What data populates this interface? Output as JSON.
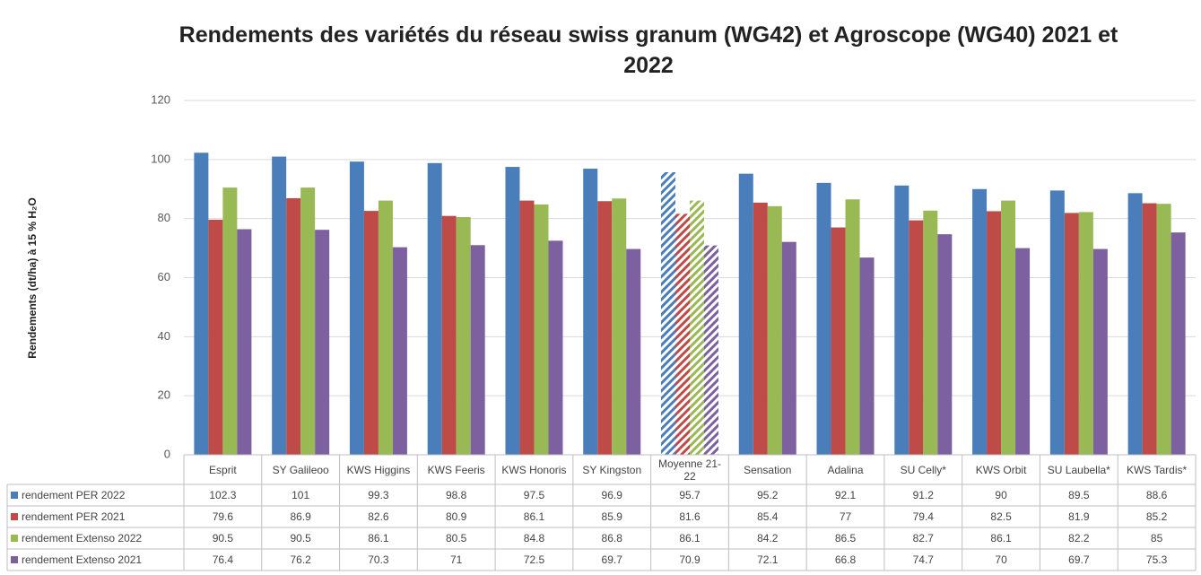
{
  "chart_data": {
    "type": "bar",
    "title": "Rendements des variétés du réseau swiss granum (WG42) et Agroscope (WG40) 2021 et 2022",
    "y_label": "Rendements (dt/ha) à 15 % H₂O",
    "categories": [
      "Esprit",
      "SY Galileoo",
      "KWS Higgins",
      "KWS Feeris",
      "KWS Honoris",
      "SY Kingston",
      "Moyenne 21-22",
      "Sensation",
      "Adalina",
      "SU Celly*",
      "KWS Orbit",
      "SU Laubella*",
      "KWS Tardis*"
    ],
    "series": [
      {
        "name": "rendement PER 2022",
        "color": "#4a7ebb",
        "values": [
          102.3,
          101,
          99.3,
          98.8,
          97.5,
          96.9,
          95.7,
          95.2,
          92.1,
          91.2,
          90,
          89.5,
          88.6
        ]
      },
      {
        "name": "rendement PER 2021",
        "color": "#be4b48",
        "values": [
          79.6,
          86.9,
          82.6,
          80.9,
          86.1,
          85.9,
          81.6,
          85.4,
          77,
          79.4,
          82.5,
          81.9,
          85.2
        ]
      },
      {
        "name": "rendement Extenso 2022",
        "color": "#98b954",
        "values": [
          90.5,
          90.5,
          86.1,
          80.5,
          84.8,
          86.8,
          86.1,
          84.2,
          86.5,
          82.7,
          86.1,
          82.2,
          85
        ]
      },
      {
        "name": "rendement Extenso 2021",
        "color": "#7d60a0",
        "values": [
          76.4,
          76.2,
          70.3,
          71,
          72.5,
          69.7,
          70.9,
          72.1,
          66.8,
          74.7,
          70,
          69.7,
          75.3
        ]
      }
    ],
    "hatched_category_index": 6,
    "ylim": [
      0,
      120
    ],
    "yticks": [
      0,
      20,
      40,
      60,
      80,
      100,
      120
    ],
    "grid": true,
    "data_table": true
  }
}
